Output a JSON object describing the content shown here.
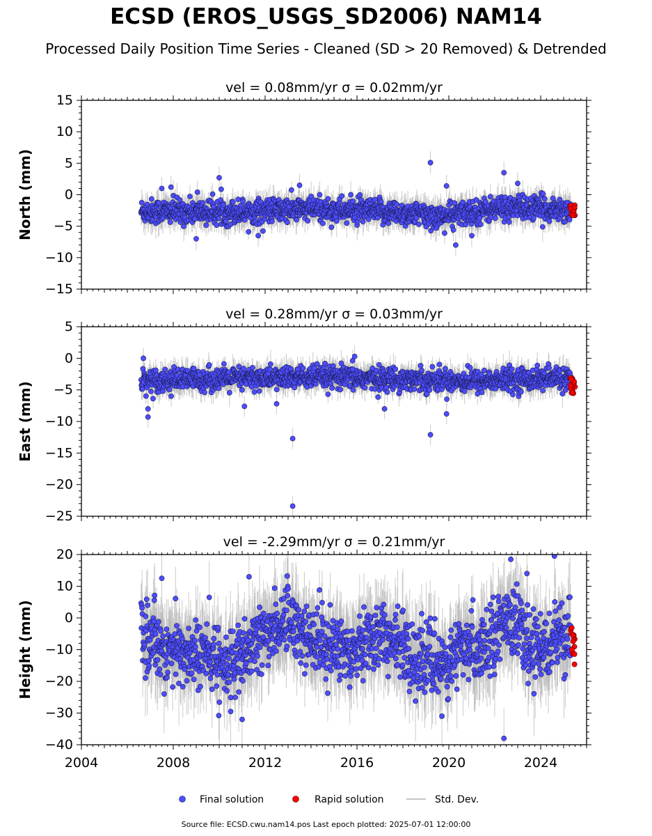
{
  "header": {
    "title": "ECSD (EROS_USGS_SD2006) NAM14",
    "subtitle": "Processed Daily Position Time Series - Cleaned (SD > 20 Removed) & Detrended"
  },
  "legend": {
    "final": "Final solution",
    "rapid": "Rapid solution",
    "std": "Std. Dev."
  },
  "footer": {
    "text": "Source file: ECSD.cwu.nam14.pos  Last epoch plotted: 2025-07-01 12:00:00"
  },
  "colors": {
    "final": "#4d4dff",
    "rapid": "#ff0000",
    "std": "#b4b4b4"
  },
  "chart_data": [
    {
      "type": "scatter",
      "panel": "north",
      "title": "vel = 0.08mm/yr   σ = 0.02mm/yr",
      "ylabel": "North (mm)",
      "xlim": [
        2004.0,
        2026.0
      ],
      "ylim": [
        -15,
        15
      ],
      "yticks": [
        -15,
        -10,
        -5,
        0,
        5,
        10,
        15
      ],
      "xticks": [
        2004,
        2008,
        2012,
        2016,
        2020,
        2024
      ],
      "series": [
        {
          "name": "Final solution",
          "x_range": [
            2006.6,
            2025.3
          ],
          "baseline": [
            [
              2006.6,
              -2.6
            ],
            [
              2010.0,
              -2.8
            ],
            [
              2014.0,
              -2.3
            ],
            [
              2018.0,
              -2.9
            ],
            [
              2019.6,
              -3.5
            ],
            [
              2022.5,
              -2.0
            ],
            [
              2025.3,
              -2.4
            ]
          ],
          "spread": 1.2,
          "outliers": [
            [
              2009.0,
              -7.0
            ],
            [
              2009.05,
              0.4
            ],
            [
              2010.0,
              2.7
            ],
            [
              2019.2,
              5.1
            ],
            [
              2022.4,
              3.5
            ],
            [
              2023.0,
              1.8
            ],
            [
              2019.9,
              1.4
            ],
            [
              2020.3,
              -8.0
            ],
            [
              2020.2,
              -5.6
            ],
            [
              2007.5,
              1.0
            ],
            [
              2011.7,
              -6.5
            ],
            [
              2013.5,
              1.5
            ],
            [
              2021.0,
              -6.5
            ],
            [
              2007.9,
              1.2
            ]
          ]
        },
        {
          "name": "Rapid solution",
          "x_range": [
            2025.3,
            2025.5
          ],
          "y_range": [
            -3.4,
            -1.0
          ]
        }
      ]
    },
    {
      "type": "scatter",
      "panel": "east",
      "title": "vel = 0.28mm/yr   σ = 0.03mm/yr",
      "ylabel": "East (mm)",
      "xlim": [
        2004.0,
        2026.0
      ],
      "ylim": [
        -25,
        5
      ],
      "yticks": [
        -25,
        -20,
        -15,
        -10,
        -5,
        0,
        5
      ],
      "xticks": [
        2004,
        2008,
        2012,
        2016,
        2020,
        2024
      ],
      "series": [
        {
          "name": "Final solution",
          "x_range": [
            2006.6,
            2025.3
          ],
          "baseline": [
            [
              2006.6,
              -3.5
            ],
            [
              2010.0,
              -3.3
            ],
            [
              2014.0,
              -3.0
            ],
            [
              2018.0,
              -3.3
            ],
            [
              2021.0,
              -3.6
            ],
            [
              2025.3,
              -3.1
            ]
          ],
          "spread": 1.1,
          "outliers": [
            [
              2006.7,
              0.0
            ],
            [
              2006.9,
              -8.0
            ],
            [
              2006.9,
              -9.3
            ],
            [
              2013.2,
              -12.7
            ],
            [
              2013.2,
              -23.4
            ],
            [
              2019.2,
              -12.1
            ],
            [
              2017.2,
              -8.0
            ],
            [
              2019.9,
              -8.8
            ],
            [
              2015.9,
              0.3
            ],
            [
              2011.1,
              -7.6
            ],
            [
              2012.5,
              -7.2
            ]
          ]
        },
        {
          "name": "Rapid solution",
          "x_range": [
            2025.3,
            2025.5
          ],
          "y_range": [
            -6.0,
            -3.0
          ]
        }
      ]
    },
    {
      "type": "scatter",
      "panel": "height",
      "title": "vel = -2.29mm/yr   σ = 0.21mm/yr",
      "ylabel": "Height (mm)",
      "xlim": [
        2004.0,
        2026.0
      ],
      "ylim": [
        -40,
        20
      ],
      "yticks": [
        -40,
        -30,
        -20,
        -10,
        0,
        10,
        20
      ],
      "xticks": [
        2004,
        2008,
        2012,
        2016,
        2020,
        2024
      ],
      "xticklabels": [
        "2004",
        "2008",
        "2012",
        "2016",
        "2020",
        "2024"
      ],
      "series": [
        {
          "name": "Final solution",
          "x_range": [
            2006.6,
            2025.3
          ],
          "baseline": [
            [
              2006.6,
              -5
            ],
            [
              2008.0,
              -11
            ],
            [
              2009.5,
              -12
            ],
            [
              2010.8,
              -15
            ],
            [
              2012.0,
              -5
            ],
            [
              2013.0,
              0
            ],
            [
              2014.0,
              -7
            ],
            [
              2015.5,
              -10
            ],
            [
              2017.0,
              -5
            ],
            [
              2018.5,
              -12
            ],
            [
              2019.7,
              -15
            ],
            [
              2020.8,
              -10
            ],
            [
              2021.8,
              -7
            ],
            [
              2022.6,
              2
            ],
            [
              2023.5,
              -10
            ],
            [
              2024.5,
              -7
            ],
            [
              2025.3,
              -8
            ]
          ],
          "spread": 6.5,
          "outliers": [
            [
              2022.4,
              -38.0
            ],
            [
              2022.7,
              18.5
            ],
            [
              2024.6,
              19.5
            ],
            [
              2011.3,
              13.0
            ],
            [
              2007.5,
              12.5
            ],
            [
              2011.0,
              -32.0
            ],
            [
              2019.7,
              -31.0
            ],
            [
              2010.5,
              -29.5
            ],
            [
              2023.4,
              14.0
            ]
          ]
        },
        {
          "name": "Rapid solution",
          "x_range": [
            2025.3,
            2025.5
          ],
          "y_range": [
            -15.0,
            -2.0
          ]
        }
      ]
    }
  ]
}
